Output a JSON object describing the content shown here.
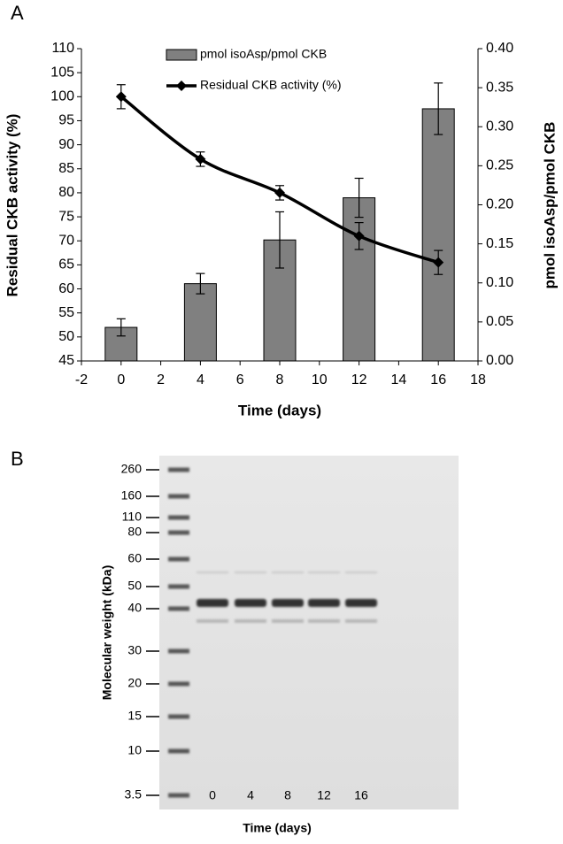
{
  "chart_data": {
    "type": "combo",
    "panel_label": "A",
    "x_label": "Time (days)",
    "y_label": "Residual CKB activity (%)",
    "y2_label": "pmol isoAsp/pmol CKB",
    "x": [
      0,
      4,
      8,
      12,
      16
    ],
    "xlim": [
      -2,
      18
    ],
    "xticks": [
      -2,
      0,
      2,
      4,
      6,
      8,
      10,
      12,
      14,
      16,
      18
    ],
    "ylim": [
      45,
      110
    ],
    "yticks": [
      45,
      50,
      55,
      60,
      65,
      70,
      75,
      80,
      85,
      90,
      95,
      100,
      105,
      110
    ],
    "y2lim": [
      0,
      0.4
    ],
    "y2ticks": [
      {
        "value": 0,
        "label": "0.00"
      },
      {
        "value": 0.05,
        "label": "0.05"
      },
      {
        "value": 0.1,
        "label": "0.10"
      },
      {
        "value": 0.15,
        "label": "0.15"
      },
      {
        "value": 0.2,
        "label": "0.20"
      },
      {
        "value": 0.25,
        "label": "0.25"
      },
      {
        "value": 0.3,
        "label": "0.30"
      },
      {
        "value": 0.35,
        "label": "0.35"
      },
      {
        "value": 0.4,
        "label": "0.40"
      }
    ],
    "series": [
      {
        "name": "pmol isoAsp/pmol CKB",
        "type": "bar",
        "axis": "y2",
        "color": "#808080",
        "values": [
          0.043,
          0.099,
          0.155,
          0.209,
          0.323
        ],
        "errors": [
          0.011,
          0.013,
          0.036,
          0.025,
          0.033
        ]
      },
      {
        "name": "Residual CKB activity (%)",
        "type": "line",
        "axis": "y",
        "color": "#000000",
        "values": [
          100,
          87,
          80,
          71,
          65.5
        ],
        "errors": [
          2.5,
          1.5,
          1.5,
          2.8,
          2.5
        ]
      }
    ]
  },
  "gel": {
    "panel_label": "B",
    "y_label": "Molecular weight (kDa)",
    "x_label": "Time (days)",
    "markers": [
      260,
      160,
      110,
      80,
      60,
      50,
      40,
      30,
      20,
      15,
      10,
      3.5
    ],
    "lanes": [
      0,
      4,
      8,
      12,
      16
    ]
  }
}
